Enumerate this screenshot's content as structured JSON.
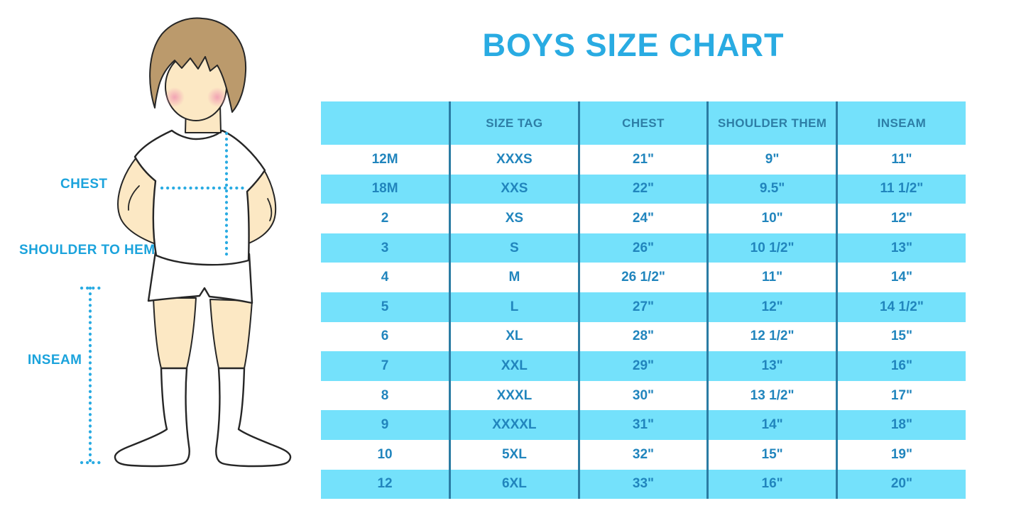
{
  "title": "BOYS SIZE CHART",
  "illustration": {
    "description": "cartoon boy in white t-shirt, shorts and knee socks with dotted measurement guides",
    "labels": {
      "chest": "CHEST",
      "shoulder_to_hem": "SHOULDER TO HEM",
      "inseam": "INSEAM"
    }
  },
  "chart_data": {
    "type": "table",
    "title": "BOYS SIZE CHART",
    "columns": [
      "",
      "SIZE TAG",
      "CHEST",
      "SHOULDER THEM",
      "INSEAM"
    ],
    "rows": [
      [
        "12M",
        "XXXS",
        "21\"",
        "9\"",
        "11\""
      ],
      [
        "18M",
        "XXS",
        "22\"",
        "9.5\"",
        "11 1/2\""
      ],
      [
        "2",
        "XS",
        "24\"",
        "10\"",
        "12\""
      ],
      [
        "3",
        "S",
        "26\"",
        "10 1/2\"",
        "13\""
      ],
      [
        "4",
        "M",
        "26 1/2\"",
        "11\"",
        "14\""
      ],
      [
        "5",
        "L",
        "27\"",
        "12\"",
        "14 1/2\""
      ],
      [
        "6",
        "XL",
        "28\"",
        "12 1/2\"",
        "15\""
      ],
      [
        "7",
        "XXL",
        "29\"",
        "13\"",
        "16\""
      ],
      [
        "8",
        "XXXL",
        "30\"",
        "13 1/2\"",
        "17\""
      ],
      [
        "9",
        "XXXXL",
        "31\"",
        "14\"",
        "18\""
      ],
      [
        "10",
        "5XL",
        "32\"",
        "15\"",
        "19\""
      ],
      [
        "12",
        "6XL",
        "33\"",
        "16\"",
        "20\""
      ]
    ],
    "layout": "header row cyan, body rows alternate white/cyan, dark teal column dividers, 5 equal columns"
  },
  "colors": {
    "title_blue": "#29abe2",
    "band_cyan": "#74e1fb",
    "header_text": "#2d7ea6",
    "divider": "#2b7ca3",
    "cell_text": "#2185bd",
    "label_blue": "#1ba3dc",
    "dotted_line": "#29abe2",
    "skin": "#fce8c4",
    "hair": "#bb9a6c",
    "blush": "#f2a4b4",
    "outline": "#262626"
  }
}
